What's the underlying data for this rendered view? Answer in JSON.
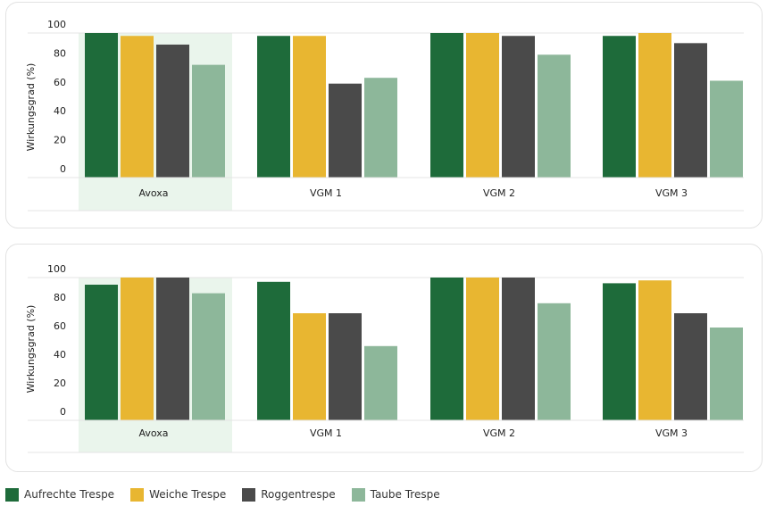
{
  "chart_data": [
    {
      "type": "bar",
      "ylabel": "Wirkungsgrad (%)",
      "yticks": [
        0,
        20,
        40,
        60,
        80,
        100
      ],
      "ylim": [
        0,
        100
      ],
      "categories": [
        "Avoxa",
        "VGM 1",
        "VGM 2",
        "VGM 3"
      ],
      "highlight_category": "Avoxa",
      "series": [
        {
          "name": "Aufrechte Trespe",
          "color": "#1e6b3a",
          "values": [
            100,
            98,
            100,
            98
          ]
        },
        {
          "name": "Weiche Trespe",
          "color": "#e8b631",
          "values": [
            98,
            98,
            100,
            100
          ]
        },
        {
          "name": "Roggentrespe",
          "color": "#4a4a4a",
          "values": [
            92,
            65,
            98,
            93
          ]
        },
        {
          "name": "Taube Trespe",
          "color": "#8db79a",
          "values": [
            78,
            69,
            85,
            67
          ]
        }
      ]
    },
    {
      "type": "bar",
      "ylabel": "Wirkungsgrad (%)",
      "yticks": [
        0,
        20,
        40,
        60,
        80,
        100
      ],
      "ylim": [
        0,
        100
      ],
      "categories": [
        "Avoxa",
        "VGM 1",
        "VGM 2",
        "VGM 3"
      ],
      "highlight_category": "Avoxa",
      "series": [
        {
          "name": "Aufrechte Trespe",
          "color": "#1e6b3a",
          "values": [
            95,
            97,
            100,
            96
          ]
        },
        {
          "name": "Weiche Trespe",
          "color": "#e8b631",
          "values": [
            100,
            75,
            100,
            98
          ]
        },
        {
          "name": "Roggentrespe",
          "color": "#4a4a4a",
          "values": [
            100,
            75,
            100,
            75
          ]
        },
        {
          "name": "Taube Trespe",
          "color": "#8db79a",
          "values": [
            89,
            52,
            82,
            65
          ]
        }
      ]
    }
  ],
  "legend": [
    {
      "label": "Aufrechte Trespe",
      "color": "#1e6b3a"
    },
    {
      "label": "Weiche Trespe",
      "color": "#e8b631"
    },
    {
      "label": "Roggentrespe",
      "color": "#4a4a4a"
    },
    {
      "label": "Taube Trespe",
      "color": "#8db79a"
    }
  ],
  "colors": {
    "highlight_band": "#eaf5ec",
    "gridline": "#e4e4e4",
    "axis_text": "#222222"
  }
}
